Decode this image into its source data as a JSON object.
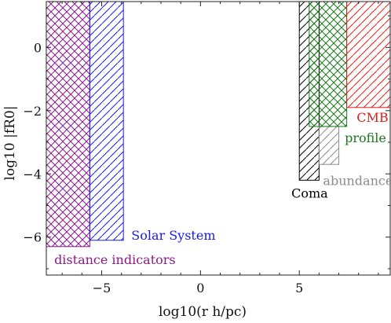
{
  "chart_data": {
    "type": "area",
    "xlabel": "log10(r h/pc)",
    "ylabel": "log10 |fR0|",
    "xlim": [
      -7.8,
      9.6
    ],
    "ylim": [
      -7.2,
      1.45
    ],
    "xticks": [
      -5,
      0,
      5
    ],
    "yticks": [
      0,
      -2,
      -4,
      -6
    ],
    "xtick_labels": [
      "−5",
      "0",
      "5"
    ],
    "ytick_labels": [
      "0",
      "−2",
      "−4",
      "−6"
    ],
    "grid": false,
    "series": [
      {
        "name": "distance indicators",
        "color": "#8a1a8a",
        "hatch": "cross",
        "x": [
          -7.8,
          -5.6
        ],
        "y_bottom": -6.3,
        "y_top": 1.45
      },
      {
        "name": "Solar System",
        "color": "#1a1ae6",
        "hatch": "diagonal",
        "x": [
          -5.6,
          -3.9
        ],
        "y_bottom": -6.1,
        "y_top": 1.45
      },
      {
        "name": "Coma",
        "color": "#000000",
        "hatch": "diagonal",
        "x": [
          5.0,
          6.0
        ],
        "y_bottom": -4.2,
        "y_top": 1.45
      },
      {
        "name": "abundance",
        "color": "#8c8c8c",
        "hatch": "diagonal",
        "x": [
          6.0,
          7.0
        ],
        "y_bottom": -3.7,
        "y_top": -2.5
      },
      {
        "name": "profile",
        "color": "#1a7a1a",
        "hatch": "cross",
        "x": [
          5.5,
          7.4
        ],
        "y_bottom": -2.5,
        "y_top": 1.45
      },
      {
        "name": "CMB",
        "color": "#e61a1a",
        "hatch": "diagonal",
        "x": [
          7.4,
          9.6
        ],
        "y_bottom": -1.9,
        "y_top": 1.45
      }
    ],
    "annotations": [
      {
        "text": "Solar System",
        "color": "#1a1ae6",
        "x": -3.5,
        "y": -6.08
      },
      {
        "text": "distance indicators",
        "color": "#8a1a8a",
        "x": -7.4,
        "y": -6.85
      },
      {
        "text": "Coma",
        "color": "#000000",
        "x": 4.6,
        "y": -4.75
      },
      {
        "text": "abundance",
        "color": "#8c8c8c",
        "x": 6.2,
        "y": -4.35
      },
      {
        "text": "profile",
        "color": "#1a7a1a",
        "x": 7.3,
        "y": -3.0
      },
      {
        "text": "CMB",
        "color": "#e61a1a",
        "x": 7.9,
        "y": -2.35
      }
    ]
  }
}
